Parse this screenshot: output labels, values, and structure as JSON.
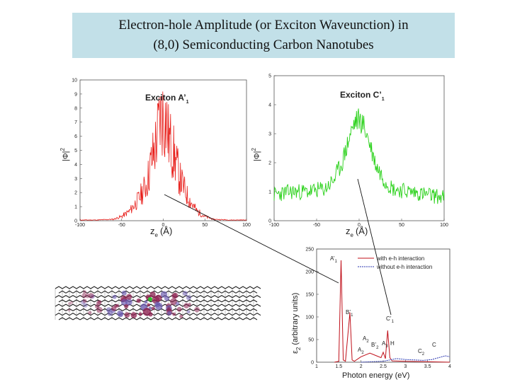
{
  "slide": {
    "title_line1": "Electron-hole Amplitude (or Exciton Waveunction) in",
    "title_line2": "(8,0) Semiconducting Carbon Nanotubes"
  },
  "chart_data": [
    {
      "type": "line",
      "title": "Exciton A’1",
      "title_main": "Exciton A’",
      "title_sub": "1",
      "xlabel": "z",
      "xlabel_sub": "e",
      "xlabel_unit": "(Å)",
      "ylabel": "|Φ|",
      "ylabel_sup": "2",
      "xlim": [
        -100,
        100
      ],
      "ylim": [
        0,
        10
      ],
      "xticks": [
        "-100",
        "-50",
        "0",
        "50",
        "100"
      ],
      "yticks": [
        "0",
        "1",
        "2",
        "3",
        "4",
        "5",
        "6",
        "7",
        "8",
        "9",
        "10"
      ],
      "series": [
        {
          "color": "#e8201c",
          "x": [
            -80,
            -60,
            -50,
            -40,
            -30,
            -20,
            -15,
            -10,
            -6,
            -4,
            -2,
            0,
            2,
            4,
            6,
            10,
            15,
            20,
            30,
            40,
            50,
            60,
            80
          ],
          "y": [
            0.05,
            0.1,
            0.3,
            0.7,
            1.5,
            2.6,
            4.0,
            5.2,
            6.5,
            7.2,
            7.4,
            7.5,
            7.3,
            7.0,
            6.0,
            5.3,
            4.2,
            3.0,
            1.6,
            0.7,
            0.3,
            0.1,
            0.05
          ]
        }
      ]
    },
    {
      "type": "line",
      "title": "Exciton C’1",
      "title_main": "Exciton C’",
      "title_sub": "1",
      "xlabel": "z",
      "xlabel_sub": "e",
      "xlabel_unit": "(Å)",
      "ylabel": "|Φ|",
      "ylabel_sup": "2",
      "xlim": [
        -100,
        100
      ],
      "ylim": [
        0,
        5
      ],
      "xticks": [
        "-100",
        "-50",
        "0",
        "50",
        "100"
      ],
      "yticks": [
        "0",
        "1",
        "2",
        "3",
        "4",
        "5"
      ],
      "series": [
        {
          "color": "#2ad11a",
          "x": [
            -100,
            -80,
            -60,
            -40,
            -30,
            -20,
            -15,
            -10,
            -5,
            0,
            5,
            10,
            15,
            20,
            30,
            40,
            60,
            80,
            100
          ],
          "y": [
            0.9,
            1.0,
            1.0,
            1.1,
            1.4,
            2.0,
            2.5,
            3.0,
            3.4,
            3.5,
            3.3,
            2.9,
            2.4,
            1.9,
            1.4,
            1.1,
            1.0,
            0.9,
            0.8
          ]
        }
      ]
    },
    {
      "type": "line",
      "xlabel": "Photon energy (eV)",
      "ylabel": "ε",
      "ylabel_sub": "2",
      "ylabel_rest": "(arbitrary units)",
      "xlim": [
        1,
        4
      ],
      "ylim": [
        0,
        250
      ],
      "xticks": [
        "1",
        "1.5",
        "2",
        "2.5",
        "3",
        "3.5",
        "4"
      ],
      "yticks": [
        "0",
        "50",
        "100",
        "150",
        "200",
        "250"
      ],
      "legend": "top-right",
      "series": [
        {
          "name": "with e-h interaction",
          "color": "#c0101a",
          "x": [
            1.4,
            1.5,
            1.55,
            1.6,
            1.65,
            1.75,
            1.8,
            1.85,
            2.0,
            2.2,
            2.35,
            2.45,
            2.5,
            2.55,
            2.6,
            2.65,
            2.7,
            3.0,
            3.5,
            4.0
          ],
          "y": [
            0,
            2,
            225,
            5,
            2,
            110,
            5,
            2,
            12,
            20,
            14,
            10,
            22,
            8,
            70,
            10,
            3,
            2,
            1,
            0
          ]
        },
        {
          "name": "without e-h interaction",
          "color": "#2a36b0",
          "x": [
            2.0,
            2.5,
            2.8,
            3.0,
            3.2,
            3.4,
            3.6,
            3.9,
            4.0
          ],
          "y": [
            0,
            2,
            8,
            6,
            5,
            4,
            6,
            14,
            12
          ]
        }
      ],
      "annotations": [
        {
          "label": "A’1",
          "main": "A’",
          "sub": "1"
        },
        {
          "label": "B’1",
          "main": "B’",
          "sub": "1"
        },
        {
          "label": "C’1",
          "main": "C’",
          "sub": "1"
        },
        {
          "label": "A2",
          "main": "A",
          "sub": "2"
        },
        {
          "label": "A2",
          "main": "A",
          "sub": "2"
        },
        {
          "label": "B’2",
          "main": "B’",
          "sub": "2"
        },
        {
          "label": "A3",
          "main": "A",
          "sub": "3"
        },
        {
          "label": "H",
          "main": "H",
          "sub": ""
        },
        {
          "label": "C2",
          "main": "C",
          "sub": "2"
        },
        {
          "label": "C",
          "main": "C",
          "sub": ""
        }
      ]
    }
  ],
  "colors": {
    "title_box": "#c2e0e8",
    "exciton_a": "#e8201c",
    "exciton_c": "#2ad11a",
    "with_eh": "#c0101a",
    "without_eh": "#2a36b0"
  },
  "nanotube": {
    "icon": "carbon-nanotube-lattice-icon"
  }
}
